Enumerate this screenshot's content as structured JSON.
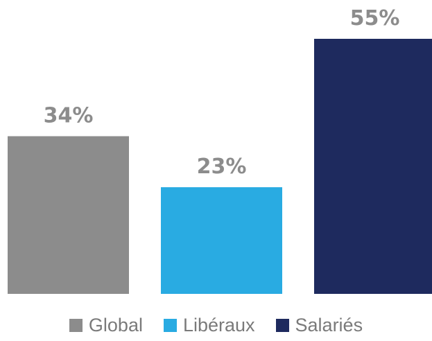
{
  "chart_data": {
    "type": "bar",
    "categories": [
      "Global",
      "Libéraux",
      "Salariés"
    ],
    "values": [
      34,
      23,
      55
    ],
    "value_labels": [
      "34%",
      "23%",
      "55%"
    ],
    "title": "",
    "xlabel": "",
    "ylabel": "",
    "ylim": [
      0,
      55
    ],
    "colors": [
      "#8c8c8c",
      "#29abe2",
      "#1e2a5e"
    ],
    "label_color": "#8c8c8c",
    "grid": false,
    "legend": {
      "placement": "bottom",
      "entries": [
        "Global",
        "Libéraux",
        "Salariés"
      ]
    }
  }
}
